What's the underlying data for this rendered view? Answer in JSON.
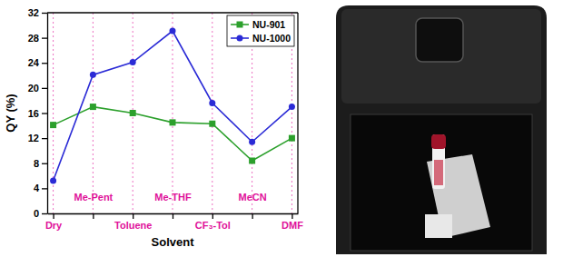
{
  "chart_data": {
    "type": "line",
    "x_label": "Solvent",
    "y_label": "QY (%)",
    "categories": [
      "Dry",
      "Me-Pent",
      "Toluene",
      "Me-THF",
      "CF₃-Tol",
      "MeCN",
      "DMF"
    ],
    "series": [
      {
        "name": "NU-901",
        "color": "#2ca02c",
        "marker": "square",
        "values": [
          14.1,
          17.0,
          16.0,
          14.5,
          14.3,
          8.4,
          12.0
        ]
      },
      {
        "name": "NU-1000",
        "color": "#2b2bd6",
        "marker": "circle",
        "values": [
          5.2,
          22.1,
          24.1,
          29.1,
          17.6,
          11.4,
          17.0
        ]
      }
    ],
    "ylim": [
      0,
      32
    ],
    "yticks": [
      0,
      4,
      8,
      12,
      16,
      20,
      24,
      28,
      32
    ],
    "grid": true,
    "legend": "top right"
  }
}
